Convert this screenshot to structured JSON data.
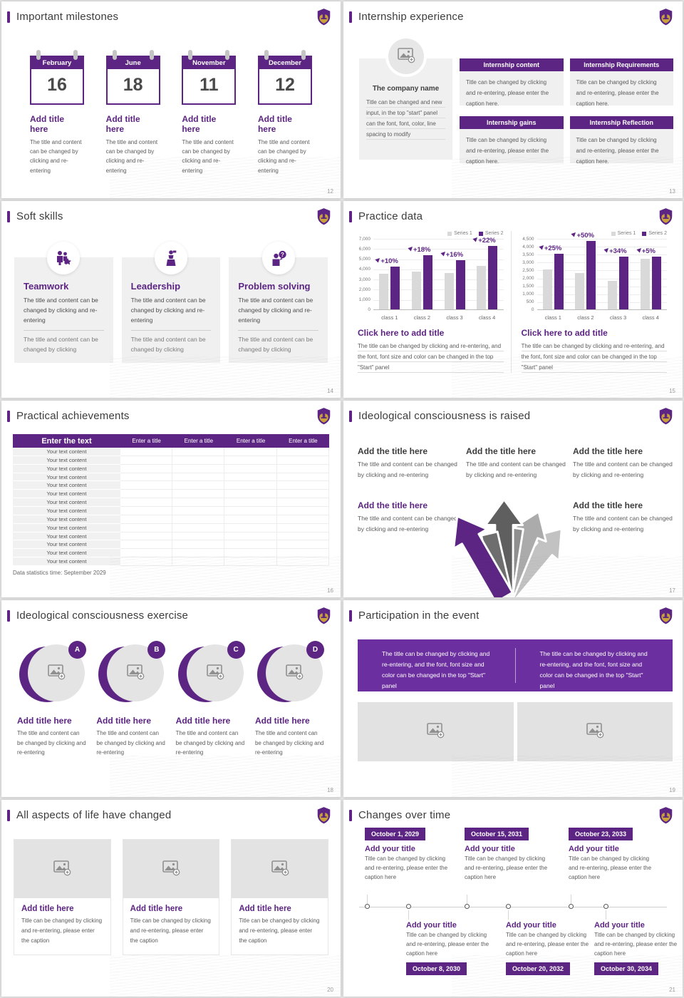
{
  "theme": {
    "purple": "#5C2483",
    "banner_purple": "#6B2FA0",
    "bar_gray": "#D9D9D9",
    "card_gray": "#F0F0F0",
    "text_dark": "#3C3C3C",
    "text_gray": "#5C5C5C"
  },
  "slides": {
    "milestones": {
      "title": "Important milestones",
      "page": "12",
      "cards": [
        {
          "month": "February",
          "day": "16",
          "title": "Add title here",
          "caption": "The title and content can be changed by clicking and re-entering"
        },
        {
          "month": "June",
          "day": "18",
          "title": "Add title here",
          "caption": "The title and content can be changed by clicking and re-entering"
        },
        {
          "month": "November",
          "day": "11",
          "title": "Add title here",
          "caption": "The title and content can be changed by clicking and re-entering"
        },
        {
          "month": "December",
          "day": "12",
          "title": "Add title here",
          "caption": "The title and content can be changed by clicking and re-entering"
        }
      ]
    },
    "internship": {
      "title": "Internship experience",
      "page": "13",
      "company": {
        "name": "The company name",
        "caption": "Title can be changed and new input, in the top \"start\" panel can the font, font, color, line spacing to modify"
      },
      "boxes": [
        {
          "title": "Internship content",
          "caption": "Title can be changed by clicking and re-entering, please enter the caption here."
        },
        {
          "title": "Internship Requirements",
          "caption": "Title can be changed by clicking and re-entering, please enter the caption here."
        },
        {
          "title": "Internship gains",
          "caption": "Title can be changed by clicking and re-entering, please enter the caption here."
        },
        {
          "title": "Internship Reflection",
          "caption": "Title can be changed by clicking and re-entering, please enter the caption here."
        }
      ]
    },
    "soft_skills": {
      "title": "Soft skills",
      "page": "14",
      "cards": [
        {
          "icon": "teamwork-icon",
          "title": "Teamwork",
          "caption": "The title and content can be changed by clicking and re-entering",
          "caption2": "The title and content can be changed by clicking"
        },
        {
          "icon": "leadership-icon",
          "title": "Leadership",
          "caption": "The title and content can be changed by clicking and re-entering",
          "caption2": "The title and content can be changed by clicking"
        },
        {
          "icon": "problem-solving-icon",
          "title": "Problem solving",
          "caption": "The title and content can be changed by clicking and re-entering",
          "caption2": "The title and content can be changed by clicking"
        }
      ]
    },
    "practice_data": {
      "title": "Practice data",
      "page": "15",
      "subtitle": "Click here to add title",
      "caption": "The title can be changed by clicking and re-entering, and the font, font size and color can be changed in the top \"Start\" panel"
    },
    "achievements": {
      "title": "Practical achievements",
      "page": "16",
      "table": {
        "header_main": "Enter the text",
        "header_cols": [
          "Enter a title",
          "Enter a title",
          "Enter a title",
          "Enter a title"
        ],
        "row_label": "Your text content",
        "row_count": 14
      },
      "footnote": "Data statistics time: September 2029"
    },
    "ideology_raised": {
      "title": "Ideological consciousness is raised",
      "page": "17",
      "blocks": [
        {
          "title": "Add the title here",
          "caption": "The title and content can be changed by clicking and re-entering"
        },
        {
          "title": "Add the title here",
          "caption": "The title and content can be changed by clicking and re-entering"
        },
        {
          "title": "Add the title here",
          "caption": "The title and content can be changed by clicking and re-entering"
        },
        {
          "title": "Add the title here",
          "caption": "The title and content can be changed by clicking and re-entering"
        },
        {
          "title": "Add the title here",
          "caption": "The title and content can be changed by clicking and re-entering"
        }
      ]
    },
    "ideology_exercise": {
      "title": "Ideological consciousness exercise",
      "page": "18",
      "items": [
        {
          "badge": "A",
          "title": "Add title here",
          "caption": "The title and content can be changed by clicking and re-entering"
        },
        {
          "badge": "B",
          "title": "Add title here",
          "caption": "The title and content can be changed by clicking and re-entering"
        },
        {
          "badge": "C",
          "title": "Add title here",
          "caption": "The title and content can be changed by clicking and re-entering"
        },
        {
          "badge": "D",
          "title": "Add title here",
          "caption": "The title and content can be changed by clicking and re-entering"
        }
      ]
    },
    "participation": {
      "title": "Participation in the event",
      "page": "19",
      "banner": [
        "The title can be changed by clicking and re-entering, and the font, font size and color can be changed in the top \"Start\" panel",
        "The title can be changed by clicking and re-entering, and the font, font size and color can be changed in the top \"Start\" panel"
      ]
    },
    "life_changed": {
      "title": "All aspects of life have changed",
      "page": "20",
      "cards": [
        {
          "title": "Add title here",
          "caption": "Title can be changed by clicking and re-entering, please enter the caption"
        },
        {
          "title": "Add title here",
          "caption": "Title can be changed by clicking and re-entering, please enter the caption"
        },
        {
          "title": "Add title here",
          "caption": "Title can be changed by clicking and re-entering, please enter the caption"
        }
      ]
    },
    "timeline": {
      "title": "Changes over time",
      "page": "21",
      "top": [
        {
          "date": "October 1, 2029",
          "title": "Add your title",
          "caption": "Title can be changed by clicking and re-entering, please enter the caption here"
        },
        {
          "date": "October 15, 2031",
          "title": "Add your title",
          "caption": "Title can be changed by clicking and re-entering, please enter the caption here"
        },
        {
          "date": "October 23, 2033",
          "title": "Add your title",
          "caption": "Title can be changed by clicking and re-entering, please enter the caption here"
        }
      ],
      "bottom": [
        {
          "date": "October 8, 2030",
          "title": "Add your title",
          "caption": "Title can be changed by clicking and re-entering, please enter the caption here"
        },
        {
          "date": "October 20, 2032",
          "title": "Add your title",
          "caption": "Title can be changed by clicking and re-entering, please enter the caption here"
        },
        {
          "date": "October 30, 2034",
          "title": "Add your title",
          "caption": "Title can be changed by clicking and re-entering, please enter the caption here"
        }
      ]
    }
  },
  "chart_data": [
    {
      "type": "bar",
      "categories": [
        "class 1",
        "class 2",
        "class 3",
        "class 4"
      ],
      "series": [
        {
          "name": "Series 1",
          "values": [
            3500,
            3700,
            3600,
            4300
          ]
        },
        {
          "name": "Series 2",
          "values": [
            4200,
            5300,
            4800,
            6200
          ]
        }
      ],
      "labels": [
        "+10%",
        "+18%",
        "+16%",
        "+22%"
      ],
      "title": "Click here to add title",
      "xlabel": "",
      "ylabel": "",
      "ylim": [
        0,
        7000
      ],
      "ytick_step": 1000,
      "grid": true,
      "legend_position": "top-right"
    },
    {
      "type": "bar",
      "categories": [
        "class 1",
        "class 2",
        "class 3",
        "class 4"
      ],
      "series": [
        {
          "name": "Series 1",
          "values": [
            2500,
            2300,
            1800,
            3200
          ]
        },
        {
          "name": "Series 2",
          "values": [
            3500,
            4300,
            3350,
            3350
          ]
        }
      ],
      "labels": [
        "+25%",
        "+50%",
        "+34%",
        "+5%"
      ],
      "title": "Click here to add title",
      "xlabel": "",
      "ylabel": "",
      "ylim": [
        0,
        4500
      ],
      "ytick_step": 500,
      "grid": true,
      "legend_position": "top-right"
    }
  ]
}
